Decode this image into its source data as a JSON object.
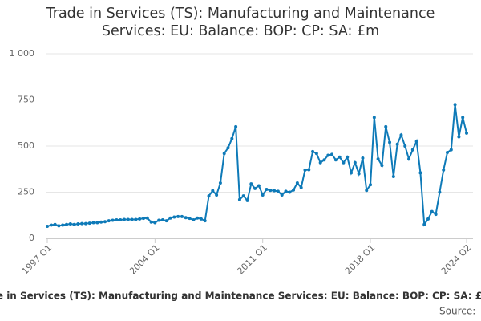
{
  "chart_data": {
    "type": "line",
    "title": "Trade in Services (TS): Manufacturing and Maintenance Services: EU: Balance: BOP: CP: SA: £m",
    "source": "Source:",
    "categories": [
      "1997 Q1",
      null,
      null,
      null,
      null,
      null,
      null,
      null,
      null,
      null,
      null,
      null,
      null,
      null,
      null,
      null,
      null,
      null,
      null,
      null,
      null,
      null,
      null,
      null,
      null,
      null,
      null,
      null,
      "2004 Q1",
      null,
      null,
      null,
      null,
      null,
      null,
      null,
      null,
      null,
      null,
      null,
      null,
      null,
      null,
      null,
      null,
      null,
      null,
      null,
      null,
      null,
      null,
      null,
      null,
      null,
      null,
      null,
      "2011 Q1",
      null,
      null,
      null,
      null,
      null,
      null,
      null,
      null,
      null,
      null,
      null,
      null,
      null,
      null,
      null,
      null,
      null,
      null,
      null,
      null,
      null,
      null,
      null,
      null,
      null,
      null,
      null,
      "2018 Q1",
      null,
      null,
      null,
      null,
      null,
      null,
      null,
      null,
      null,
      null,
      null,
      null,
      null,
      null,
      null,
      null,
      null,
      null,
      null,
      null,
      null,
      null,
      null,
      null,
      "2024 Q2"
    ],
    "series": [
      {
        "color": "#0e7ab8",
        "values": [
          65,
          72,
          75,
          68,
          72,
          75,
          78,
          75,
          78,
          80,
          80,
          82,
          85,
          85,
          88,
          90,
          95,
          98,
          100,
          100,
          102,
          102,
          102,
          102,
          105,
          108,
          110,
          88,
          85,
          98,
          100,
          95,
          110,
          115,
          118,
          118,
          112,
          108,
          100,
          110,
          105,
          95,
          230,
          258,
          235,
          300,
          460,
          490,
          540,
          605,
          210,
          230,
          205,
          295,
          270,
          285,
          235,
          265,
          260,
          258,
          255,
          235,
          255,
          250,
          262,
          300,
          275,
          370,
          372,
          470,
          460,
          410,
          425,
          450,
          455,
          425,
          440,
          410,
          440,
          355,
          410,
          350,
          435,
          260,
          290,
          655,
          430,
          395,
          605,
          520,
          335,
          510,
          560,
          500,
          430,
          480,
          525,
          355,
          75,
          105,
          145,
          130,
          250,
          370,
          465,
          480,
          725,
          550,
          655,
          570
        ]
      }
    ],
    "ylim": [
      0,
      1000
    ],
    "yticks": [
      0,
      250,
      500,
      750,
      {
        "value": 1000,
        "label": "1 000"
      }
    ],
    "grid": true
  }
}
